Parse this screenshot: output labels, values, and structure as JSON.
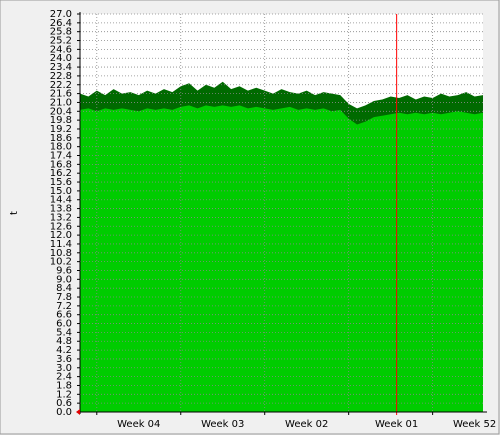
{
  "chart_data": {
    "type": "area",
    "ylabel": "t",
    "x": [
      0,
      0.7,
      1.4,
      2.1,
      2.8,
      3.5,
      4.2,
      4.9,
      5.6,
      6.3,
      7,
      7.7,
      8.4,
      9.1,
      9.8,
      10.5,
      11.2,
      11.9,
      12.6,
      13.3,
      14,
      14.7,
      15.4,
      16.1,
      16.8,
      17.5,
      18.2,
      18.9,
      19.6,
      20.3,
      21,
      21.7,
      22.4,
      23.1,
      23.8,
      24.5,
      25.2,
      25.9,
      26.6,
      27.3,
      28,
      28.7,
      29.4,
      30.1,
      30.8,
      31.5,
      32.2,
      32.9,
      33.6
    ],
    "series": [
      {
        "color": "#006a00",
        "values": [
          21.6,
          21.4,
          21.8,
          21.5,
          21.9,
          21.6,
          21.7,
          21.5,
          21.8,
          21.6,
          21.9,
          21.7,
          22.1,
          22.3,
          21.8,
          22.2,
          22.0,
          22.4,
          21.9,
          22.1,
          21.8,
          22.0,
          21.8,
          21.6,
          21.9,
          21.7,
          21.6,
          21.8,
          21.5,
          21.7,
          21.6,
          21.5,
          20.9,
          20.6,
          20.8,
          21.1,
          21.2,
          21.4,
          21.3,
          21.5,
          21.2,
          21.4,
          21.3,
          21.6,
          21.4,
          21.5,
          21.7,
          21.4,
          21.5
        ]
      },
      {
        "color": "#00cc00",
        "values": [
          20.5,
          20.6,
          20.4,
          20.6,
          20.5,
          20.6,
          20.5,
          20.4,
          20.6,
          20.5,
          20.6,
          20.5,
          20.7,
          20.8,
          20.6,
          20.8,
          20.7,
          20.8,
          20.7,
          20.8,
          20.6,
          20.7,
          20.6,
          20.5,
          20.6,
          20.7,
          20.5,
          20.6,
          20.5,
          20.6,
          20.4,
          20.5,
          19.9,
          19.5,
          19.7,
          20.0,
          20.1,
          20.2,
          20.3,
          20.2,
          20.3,
          20.2,
          20.3,
          20.2,
          20.3,
          20.4,
          20.3,
          20.2,
          20.3
        ]
      }
    ],
    "xlim": [
      0,
      33.6
    ],
    "xticks": [
      {
        "value": 4.9,
        "label": "Week 04"
      },
      {
        "value": 11.9,
        "label": "Week 03"
      },
      {
        "value": 18.9,
        "label": "Week 02"
      },
      {
        "value": 26.4,
        "label": "Week 01"
      },
      {
        "value": 32.9,
        "label": "Week 52"
      }
    ],
    "xgrid": [
      1.4,
      8.4,
      15.4,
      22.4,
      29.4
    ],
    "vline": {
      "value": 26.4,
      "color": "#ff0000"
    },
    "ylim": [
      0,
      27
    ],
    "yticks": [
      {
        "value": 0,
        "label": "0.0"
      },
      0.6,
      1.2,
      1.8,
      2.4,
      {
        "value": 3,
        "label": "3.0"
      },
      3.6,
      4.2,
      4.8,
      5.4,
      {
        "value": 6,
        "label": "6.0"
      },
      6.6,
      7.2,
      7.8,
      8.4,
      {
        "value": 9,
        "label": "9.0"
      },
      9.6,
      10.2,
      10.8,
      11.4,
      {
        "value": 12,
        "label": "12.0"
      },
      12.6,
      13.2,
      13.8,
      14.4,
      {
        "value": 15,
        "label": "15.0"
      },
      15.6,
      16.2,
      16.8,
      17.4,
      {
        "value": 18,
        "label": "18.0"
      },
      18.6,
      19.2,
      19.8,
      20.4,
      {
        "value": 21,
        "label": "21.0"
      },
      21.6,
      22.2,
      22.8,
      23.4,
      {
        "value": 24,
        "label": "24.0"
      },
      24.6,
      25.2,
      25.8,
      26.4,
      {
        "value": 27,
        "label": "27.0"
      }
    ],
    "grid": true
  }
}
